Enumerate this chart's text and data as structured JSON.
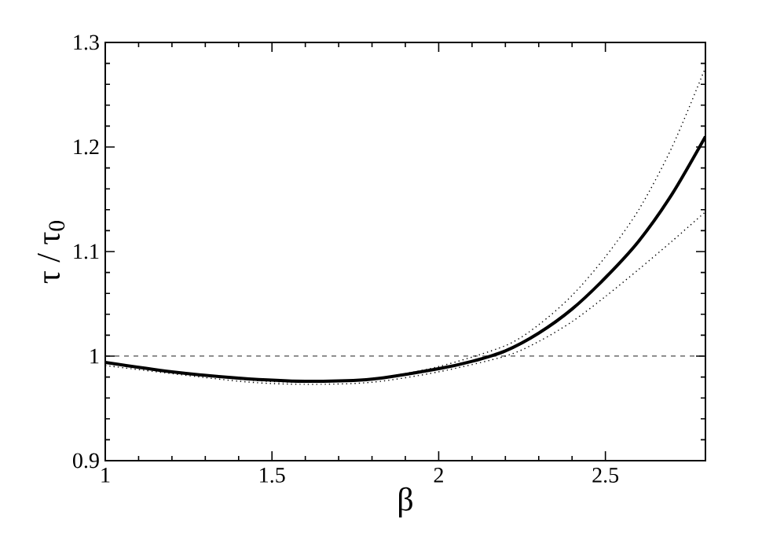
{
  "chart_data": {
    "type": "line",
    "xlabel": "β",
    "ylabel": "τ / τ$_{0}$",
    "xlim": [
      1,
      2.8
    ],
    "ylim": [
      0.9,
      1.3
    ],
    "xticks": [
      1,
      1.5,
      2,
      2.5
    ],
    "yticks": [
      0.9,
      1,
      1.1,
      1.2,
      1.3
    ],
    "marker": "none",
    "ref_lines": [
      {
        "axis": "y",
        "value": 1,
        "line_style": "dashed",
        "color": "#000000"
      }
    ],
    "series": [
      {
        "color": "#000000",
        "line_style": "solid",
        "x": [
          1,
          1.2,
          1.4,
          1.6,
          1.8,
          2.0,
          2.1,
          2.2,
          2.3,
          2.4,
          2.5,
          2.6,
          2.7,
          2.8
        ],
        "values": [
          0.994,
          0.985,
          0.979,
          0.976,
          0.978,
          0.988,
          0.995,
          1.005,
          1.022,
          1.045,
          1.075,
          1.11,
          1.155,
          1.21
        ]
      },
      {
        "color": "#000000",
        "line_style": "dotted",
        "x": [
          1,
          1.4,
          1.6,
          1.8,
          2.0,
          2.2,
          2.3,
          2.4,
          2.5,
          2.6,
          2.7,
          2.8
        ],
        "values": [
          0.993,
          0.978,
          0.975,
          0.978,
          0.99,
          1.01,
          1.03,
          1.058,
          1.095,
          1.14,
          1.2,
          1.276
        ]
      },
      {
        "color": "#000000",
        "line_style": "dotted",
        "x": [
          1,
          1.4,
          1.6,
          1.8,
          2.0,
          2.2,
          2.3,
          2.4,
          2.5,
          2.6,
          2.7,
          2.8
        ],
        "values": [
          0.991,
          0.976,
          0.973,
          0.975,
          0.985,
          1.0,
          1.014,
          1.033,
          1.057,
          1.083,
          1.11,
          1.138
        ]
      }
    ]
  }
}
